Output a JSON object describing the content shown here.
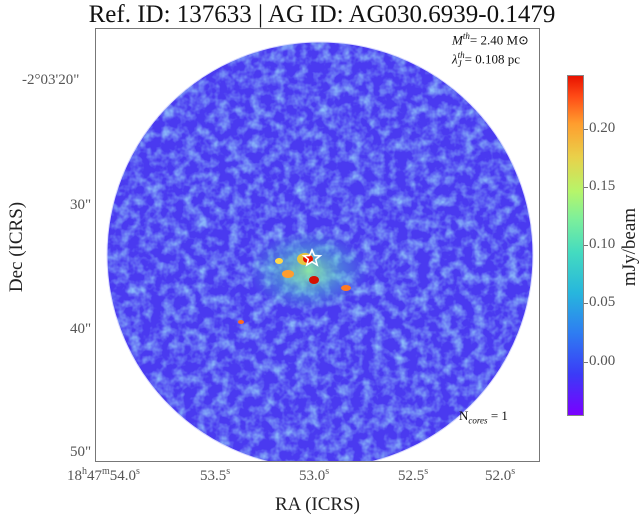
{
  "title": "Ref. ID: 137633 | AG ID: AG030.6939-0.1479",
  "annotations": {
    "mass_threshold": "M",
    "mass_sup": "th",
    "mass_value": "= 2.40 M",
    "mass_unit_symbol": "⊙",
    "lambda_symbol": "λ",
    "lambda_sub": "J",
    "lambda_sup": "th",
    "lambda_value": "= 0.108 pc",
    "ncores_label": "N",
    "ncores_sub": "cores",
    "ncores_value": " = 1"
  },
  "y_axis": {
    "label": "Dec (ICRS)",
    "ticks": [
      "-2°03'20\"",
      "30\"",
      "40\"",
      "50\""
    ]
  },
  "x_axis": {
    "label": "RA (ICRS)",
    "ticks": [
      {
        "h": "18",
        "hs": "h",
        "m": "47",
        "ms": "m",
        "s": "54.0",
        "ss": "s"
      },
      {
        "s": "53.5",
        "ss": "s"
      },
      {
        "s": "53.0",
        "ss": "s"
      },
      {
        "s": "52.5",
        "ss": "s"
      },
      {
        "s": "52.0",
        "ss": "s"
      }
    ]
  },
  "colorbar": {
    "label": "mJy/beam",
    "ticks": [
      "0.20",
      "0.15",
      "0.10",
      "0.05",
      "0.00"
    ],
    "colors": [
      "#7a00ff",
      "#2e7cf2",
      "#44dbc0",
      "#b6f56a",
      "#ff9d2e",
      "#e81200"
    ]
  }
}
